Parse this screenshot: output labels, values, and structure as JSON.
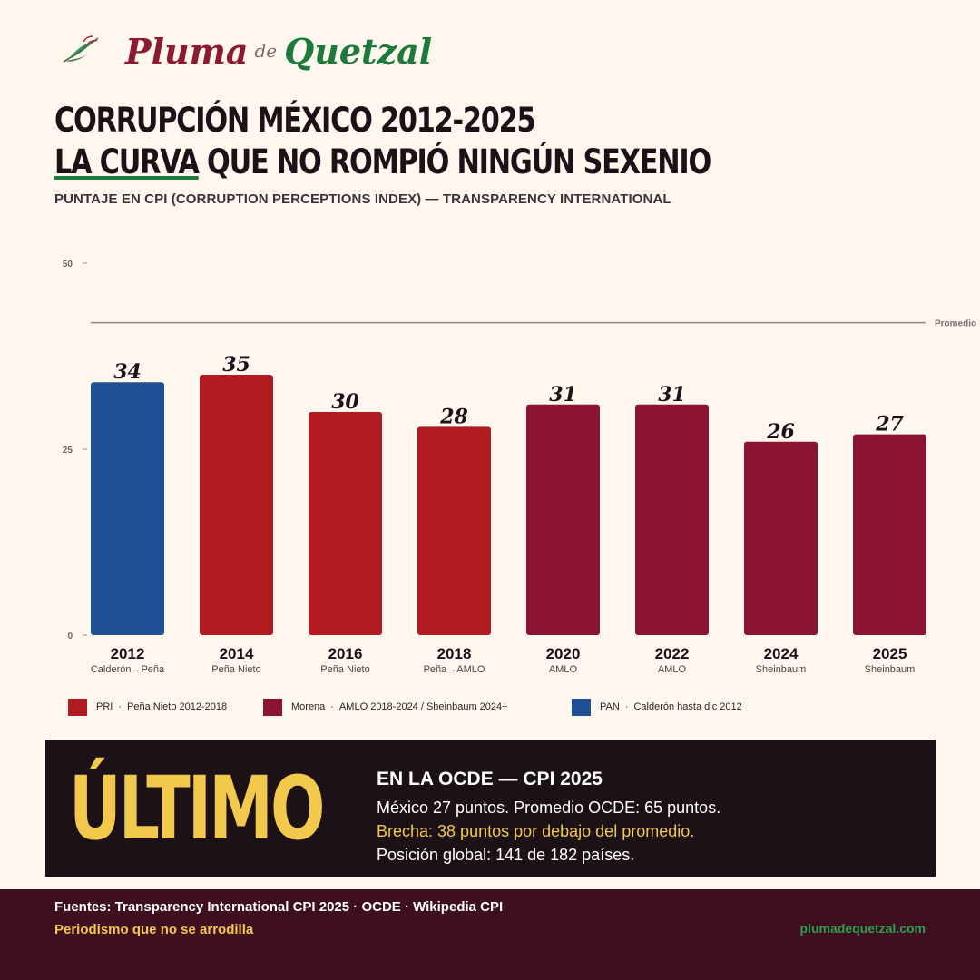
{
  "brand": {
    "word1": "Pluma",
    "word2": "de",
    "word3": "Quetzal",
    "icon": "quetzal-feather-icon"
  },
  "title": {
    "line1": "CORRUPCIÓN MÉXICO 2012-2025",
    "line2_underlined": "LA CURVA",
    "line2_rest": " QUE NO ROMPIÓ NINGÚN SEXENIO"
  },
  "subtitle": "PUNTAJE EN CPI (CORRUPTION PERCEPTIONS INDEX) — TRANSPARENCY INTERNATIONAL",
  "chart_data": {
    "type": "bar",
    "categories": [
      "2012",
      "2014",
      "2016",
      "2018",
      "2020",
      "2022",
      "2024",
      "2025"
    ],
    "sublabels": [
      "Calderón→Peña",
      "Peña Nieto",
      "Peña Nieto",
      "Peña→AMLO",
      "AMLO",
      "AMLO",
      "Sheinbaum",
      "Sheinbaum"
    ],
    "values": [
      34,
      35,
      30,
      28,
      31,
      31,
      26,
      27
    ],
    "bar_groups": [
      "PAN",
      "PRI",
      "PRI",
      "PRI",
      "Morena",
      "Morena",
      "Morena",
      "Morena"
    ],
    "colors": {
      "PAN": "#1f5093",
      "PRI": "#b01c22",
      "Morena": "#8b1530"
    },
    "yticks": [
      0,
      25,
      50
    ],
    "ylim": [
      0,
      50
    ],
    "reference_line": {
      "value": 42,
      "label": "Promedio"
    },
    "grid": false
  },
  "legend": [
    {
      "name": "PRI",
      "desc": "Peña Nieto 2012-2018",
      "color": "#b01c22"
    },
    {
      "name": "Morena",
      "desc": "AMLO 2018-2024 / Sheinbaum 2024+",
      "color": "#8b1530"
    },
    {
      "name": "PAN",
      "desc": "Calderón hasta dic 2012",
      "color": "#1f5093"
    }
  ],
  "legend_separator": "·",
  "banner": {
    "big": "ÚLTIMO",
    "heading": "EN LA OCDE — CPI 2025",
    "line1": "México 27 puntos. Promedio OCDE: 65 puntos.",
    "line2": "Brecha: 38 puntos por debajo del promedio.",
    "line3": "Posición global: 141 de 182 países."
  },
  "footer": {
    "sources": "Fuentes: Transparency International CPI 2025 · OCDE · Wikipedia CPI",
    "tagline": "Periodismo que no se arrodilla",
    "site": "plumadequetzal.com"
  }
}
